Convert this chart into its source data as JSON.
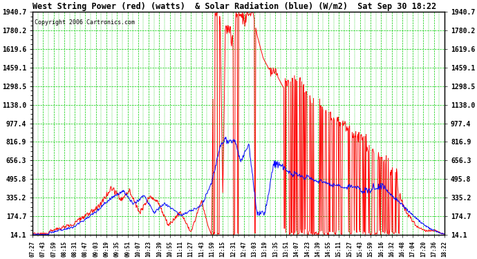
{
  "title": "West String Power (red) (watts)  & Solar Radiation (blue) (W/m2)  Sat Sep 30 18:22",
  "copyright": "Copyright 2006 Cartronics.com",
  "background_color": "#ffffff",
  "plot_bg_color": "#ffffff",
  "grid_major_color": "#00cc00",
  "grid_minor_color": "#00cc00",
  "title_color": "#000000",
  "copyright_color": "#000000",
  "red_line_color": "#ff0000",
  "blue_line_color": "#0000ff",
  "border_color": "#000000",
  "yticks": [
    14.1,
    174.7,
    335.2,
    495.8,
    656.3,
    816.9,
    977.4,
    1138.0,
    1298.5,
    1459.1,
    1619.6,
    1780.2,
    1940.7
  ],
  "ymin": 14.1,
  "ymax": 1940.7,
  "xtick_labels": [
    "07:27",
    "07:43",
    "07:59",
    "08:15",
    "08:31",
    "08:47",
    "09:03",
    "09:19",
    "09:35",
    "09:51",
    "10:07",
    "10:23",
    "10:39",
    "10:55",
    "11:11",
    "11:27",
    "11:43",
    "11:59",
    "12:15",
    "12:31",
    "12:47",
    "13:03",
    "13:19",
    "13:35",
    "13:51",
    "14:07",
    "14:23",
    "14:39",
    "14:55",
    "15:11",
    "15:27",
    "15:43",
    "15:59",
    "16:16",
    "16:32",
    "16:48",
    "17:04",
    "17:20",
    "17:36",
    "18:22"
  ],
  "n_points": 800
}
